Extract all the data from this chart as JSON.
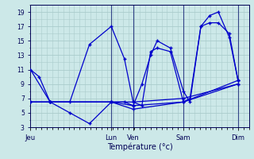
{
  "title": "Température (°c)",
  "bg_color": "#cce8e8",
  "grid_color": "#aacccc",
  "line_color": "#0000cc",
  "vline_color": "#334488",
  "ylim": [
    3,
    20
  ],
  "ytick_vals": [
    3,
    5,
    7,
    9,
    11,
    13,
    15,
    17,
    19
  ],
  "xlim": [
    0,
    100
  ],
  "day_labels": [
    "Jeu",
    "Lun",
    "Ven",
    "Sam",
    "Dim"
  ],
  "day_x": [
    0,
    37,
    47,
    70,
    95
  ],
  "vline_x": [
    37,
    47,
    70,
    95
  ],
  "lines": [
    {
      "x": [
        0,
        4,
        9,
        18,
        27,
        37,
        43,
        47,
        51,
        55,
        58,
        64,
        70,
        73,
        78,
        82,
        86,
        91,
        95
      ],
      "y": [
        11,
        10,
        6.5,
        5,
        3.5,
        6.5,
        6.5,
        6,
        9,
        13,
        15,
        14,
        8,
        6.5,
        17,
        18.5,
        19,
        15.5,
        9.5
      ]
    },
    {
      "x": [
        0,
        9,
        18,
        27,
        37,
        43,
        47,
        51,
        55,
        58,
        64,
        70,
        73,
        78,
        82,
        86,
        91,
        95
      ],
      "y": [
        11,
        6.5,
        6.5,
        14.5,
        17,
        12.5,
        6.5,
        6,
        13.5,
        14,
        13.5,
        6.5,
        7,
        17,
        17.5,
        17.5,
        16,
        9.5
      ]
    },
    {
      "x": [
        0,
        9,
        37,
        47,
        70,
        95
      ],
      "y": [
        6.5,
        6.5,
        6.5,
        6.5,
        7,
        9
      ]
    },
    {
      "x": [
        0,
        9,
        37,
        47,
        70,
        95
      ],
      "y": [
        6.5,
        6.5,
        6.5,
        6,
        6.5,
        9.5
      ]
    },
    {
      "x": [
        0,
        9,
        37,
        47,
        70,
        95
      ],
      "y": [
        6.5,
        6.5,
        6.5,
        5.5,
        6.5,
        9
      ]
    }
  ]
}
